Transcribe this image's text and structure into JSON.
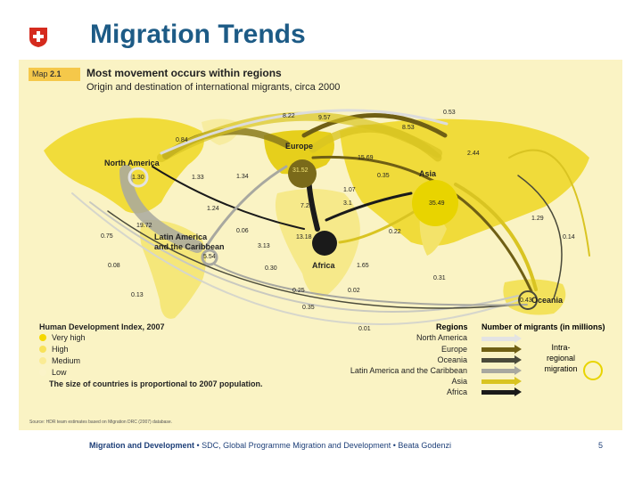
{
  "slide": {
    "title": "Migration Trends",
    "page_number": "5",
    "footer_bold": "Migration and Development",
    "footer_rest": " • SDC, Global Programme Migration and Development • Beata Godenzi"
  },
  "map": {
    "tag_prefix": "Map ",
    "tag_number": "2.1",
    "headline": "Most movement occurs within regions",
    "subtitle": "Origin and destination of international migrants, circa 2000",
    "source": "Source:  HDR team estimates based on Migration DRC (2007) database.",
    "regions": {
      "north_america": {
        "name": "North America",
        "intra": "1.30"
      },
      "europe": {
        "name": "Europe",
        "intra": "31.52"
      },
      "asia": {
        "name": "Asia",
        "intra": "35.49"
      },
      "latin_america_1": "Latin America",
      "latin_america_2": "and the Caribbean",
      "latin_america_intra": "5.54",
      "africa": {
        "name": "Africa",
        "intra": "13.18"
      },
      "oceania": {
        "name": "Oceania",
        "intra": "0.43"
      }
    },
    "flow_values": [
      "8.22",
      "9.57",
      "0.53",
      "0.84",
      "8.53",
      "15.69",
      "2.44",
      "1.33",
      "1.34",
      "0.35",
      "1.07",
      "7.25",
      "3.1",
      "1.24",
      "1.29",
      "19.72",
      "0.06",
      "0.75",
      "3.13",
      "0.22",
      "0.14",
      "0.08",
      "0.30",
      "1.65",
      "0.31",
      "0.13",
      "0.25",
      "0.02",
      "0.35",
      "0.01"
    ]
  },
  "legend": {
    "hdi_title": "Human Development Index, 2007",
    "hdi_levels": [
      {
        "label": "Very high",
        "color": "#f5d800"
      },
      {
        "label": "High",
        "color": "#f8e25a"
      },
      {
        "label": "Medium",
        "color": "#faeb94"
      },
      {
        "label": "Low",
        "color": "#fbf3c8"
      }
    ],
    "size_note": "The size of countries is proportional to 2007 population.",
    "regions_title": "Regions",
    "migrants_title": "Number of migrants (in millions)",
    "region_rows": [
      {
        "label": "North America",
        "color": "#e3e3e3"
      },
      {
        "label": "Europe",
        "color": "#6f5f14"
      },
      {
        "label": "Oceania",
        "color": "#4a4a3a"
      },
      {
        "label": "Latin America and the Caribbean",
        "color": "#a8a8a0"
      },
      {
        "label": "Asia",
        "color": "#d9c422"
      },
      {
        "label": "Africa",
        "color": "#1a1a1a"
      }
    ],
    "intra_label_1": "Intra-",
    "intra_label_2": "regional",
    "intra_label_3": "migration"
  },
  "colors": {
    "title": "#1d5b86",
    "map_bg": "#faf3c4",
    "tag": "#f5c84a",
    "swiss_red": "#d52b1e"
  }
}
